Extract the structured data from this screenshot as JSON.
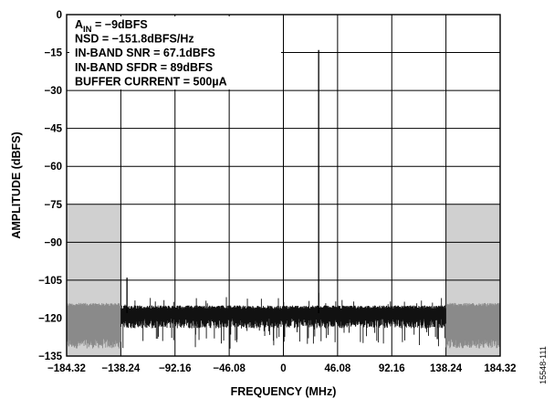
{
  "chart_data": {
    "type": "line",
    "xlabel": "FREQUENCY (MHz)",
    "ylabel": "AMPLITUDE (dBFS)",
    "xlim": [
      -184.32,
      184.32
    ],
    "ylim": [
      -135,
      0
    ],
    "x_ticks": [
      "−184.32",
      "−138.24",
      "−92.16",
      "−46.08",
      "0",
      "46.08",
      "92.16",
      "138.24",
      "184.32"
    ],
    "x_tick_values": [
      -184.32,
      -138.24,
      -92.16,
      -46.08,
      0,
      46.08,
      92.16,
      138.24,
      184.32
    ],
    "y_ticks": [
      "0",
      "−15",
      "−30",
      "−45",
      "−60",
      "−75",
      "−90",
      "−105",
      "−120",
      "−135"
    ],
    "y_tick_values": [
      0,
      -15,
      -30,
      -45,
      -60,
      -75,
      -90,
      -105,
      -120,
      -135
    ],
    "grid": true,
    "annotations": [
      {
        "lead": "A",
        "sub": "IN",
        "rest": " = −9dBFS"
      },
      {
        "text": "NSD = −151.8dBFS/Hz"
      },
      {
        "text": "IN-BAND SNR = 67.1dBFS"
      },
      {
        "text": "IN-BAND SFDR = 89dBFS"
      },
      {
        "text": "BUFFER CURRENT = 500µA"
      }
    ],
    "shaded_regions": [
      {
        "x_from": -184.32,
        "x_to": -138.24,
        "y_from": -135,
        "y_to": -75
      },
      {
        "x_from": 138.24,
        "x_to": 184.32,
        "y_from": -135,
        "y_to": -75
      }
    ],
    "noise_floor": {
      "in_band": {
        "x_range": [
          -138.24,
          138.24
        ],
        "top_dbfs": -115,
        "bottom_dbfs": -122
      },
      "out_of_band": {
        "top_dbfs": -114,
        "bottom_dbfs": -130
      }
    },
    "peaks": [
      {
        "x": 30,
        "y": -14,
        "label": "fundamental"
      },
      {
        "x": -133,
        "y": -104
      },
      {
        "x": 30,
        "y": -110
      }
    ],
    "figure_id": "15548-111"
  }
}
